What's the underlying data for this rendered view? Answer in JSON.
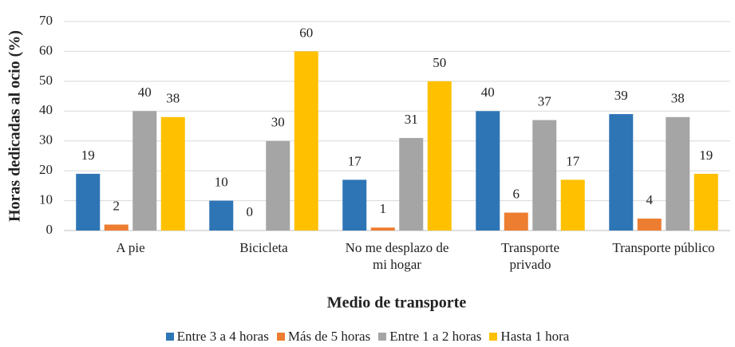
{
  "chart_data": {
    "type": "bar",
    "y_label": "Horas dedicadas al ocio (%)",
    "x_label": "Medio de transporte",
    "categories": [
      "A pie",
      "Bicicleta",
      "No me desplazo de\nmi hogar",
      "Transporte\nprivado",
      "Transporte público"
    ],
    "series": [
      {
        "name": "Entre 3 a 4 horas",
        "color": "#2e75b6",
        "values": [
          19,
          10,
          17,
          40,
          39
        ]
      },
      {
        "name": "Más de 5 horas",
        "color": "#ed7d31",
        "values": [
          2,
          0,
          1,
          6,
          4
        ]
      },
      {
        "name": "Entre 1 a 2 horas",
        "color": "#a5a5a5",
        "values": [
          40,
          30,
          31,
          37,
          38
        ]
      },
      {
        "name": "Hasta 1 hora",
        "color": "#ffc000",
        "values": [
          38,
          60,
          50,
          17,
          19
        ]
      }
    ],
    "ylim": [
      0,
      70
    ],
    "yticks": [
      0,
      10,
      20,
      30,
      40,
      50,
      60,
      70
    ],
    "grid": true,
    "legend": "bottom"
  }
}
